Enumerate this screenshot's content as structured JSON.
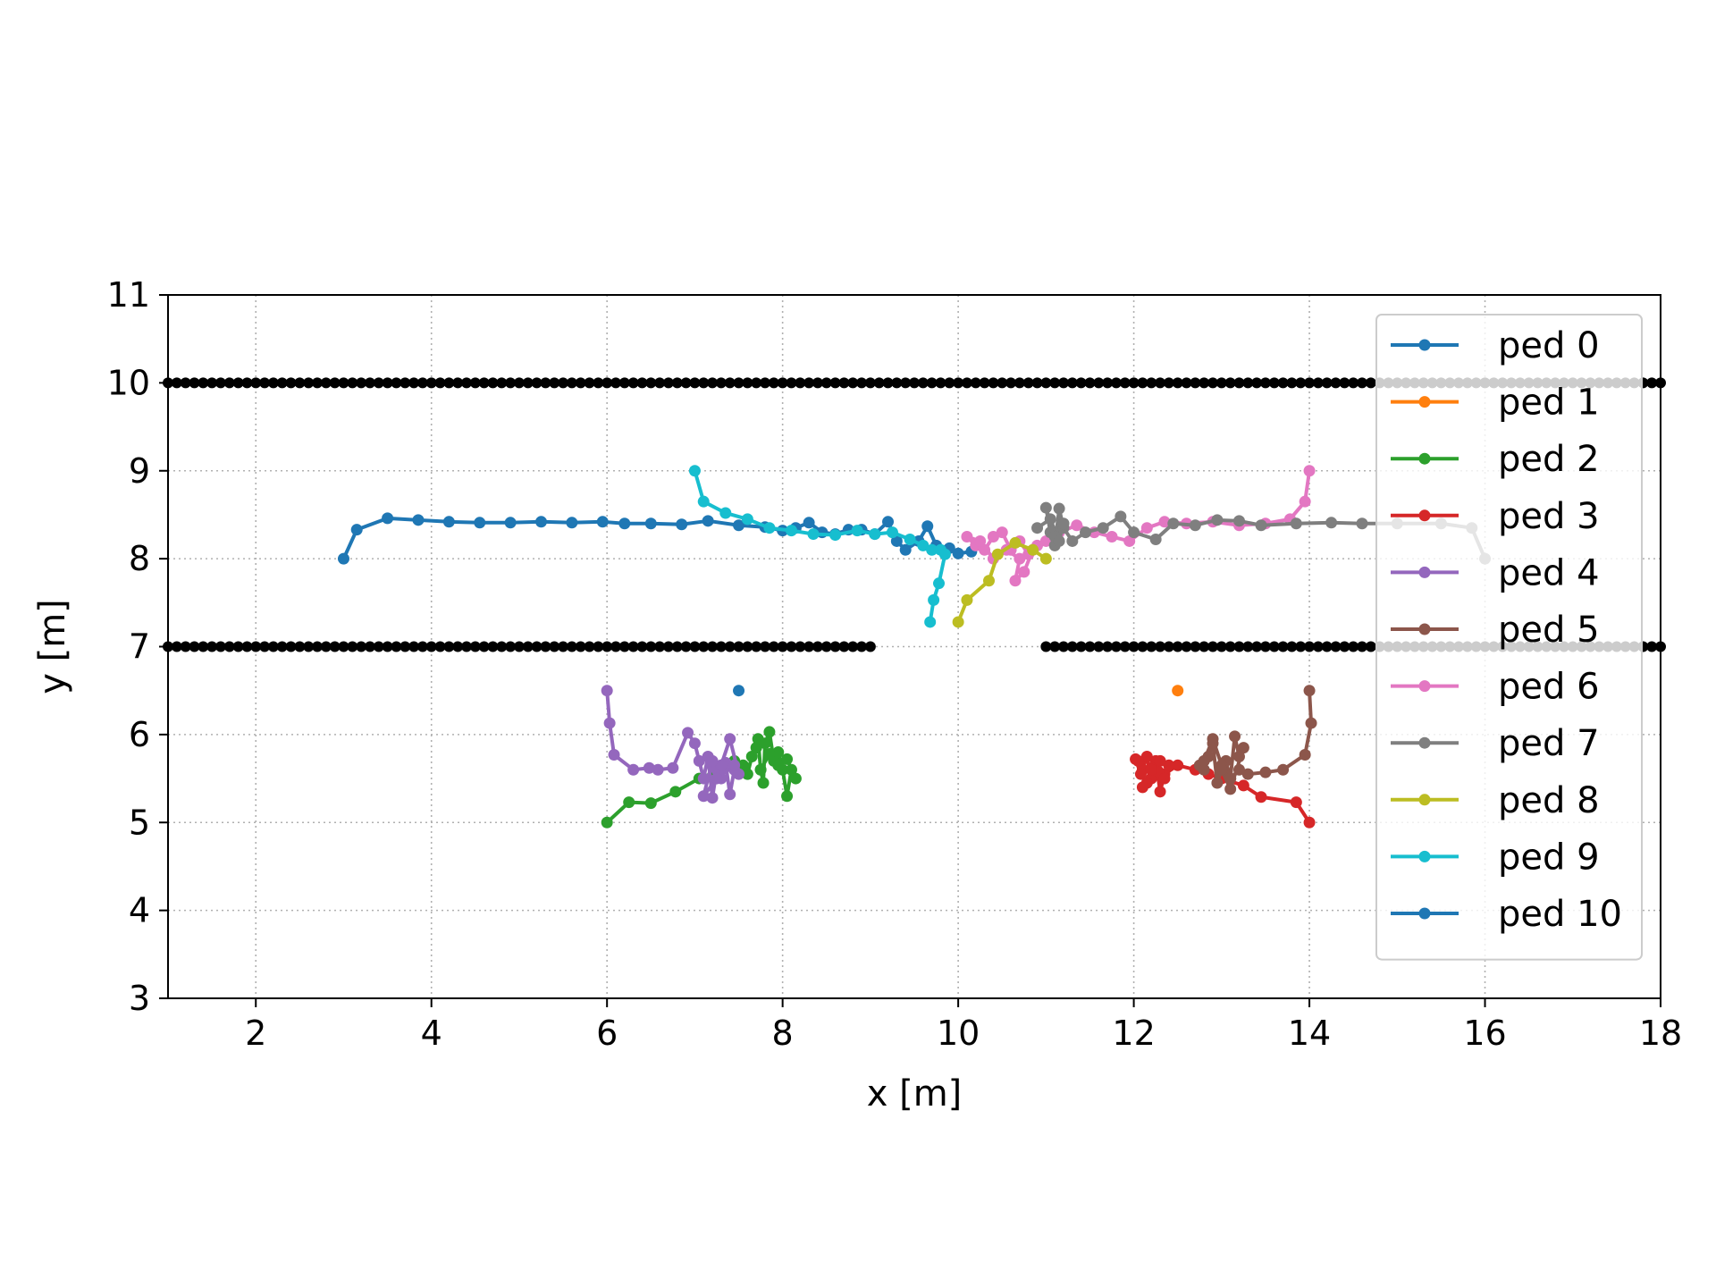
{
  "chart_data": {
    "type": "scatter",
    "title": "",
    "xlabel": "x [m]",
    "ylabel": "y [m]",
    "xlim": [
      1,
      18
    ],
    "ylim": [
      3,
      11
    ],
    "xticks": [
      2,
      4,
      6,
      8,
      10,
      12,
      14,
      16,
      18
    ],
    "yticks": [
      3,
      4,
      5,
      6,
      7,
      8,
      9,
      10,
      11
    ],
    "grid": true,
    "grid_style": "dotted",
    "legend_position": "upper-right",
    "walls": {
      "color": "#000000",
      "segments": [
        {
          "name": "upper-wall",
          "y": 10,
          "x_start": 1,
          "x_end": 18,
          "step": 0.1
        },
        {
          "name": "lower-wall-left",
          "y": 7,
          "x_start": 1,
          "x_end": 9,
          "step": 0.1
        },
        {
          "name": "lower-wall-right",
          "y": 7,
          "x_start": 11,
          "x_end": 18,
          "step": 0.1
        }
      ]
    },
    "series": [
      {
        "name": "ped 0",
        "color": "#1f77b4",
        "x": [
          3.0,
          3.15,
          3.5,
          3.85,
          4.2,
          4.55,
          4.9,
          5.25,
          5.6,
          5.95,
          6.2,
          6.5,
          6.85,
          7.15,
          7.5,
          7.8,
          8.0,
          8.15,
          8.3,
          8.45,
          8.6,
          8.75,
          8.9,
          9.05,
          9.2,
          9.3,
          9.4,
          9.55,
          9.65,
          9.75,
          9.9,
          10.0,
          10.15
        ],
        "y": [
          8.0,
          8.33,
          8.46,
          8.44,
          8.42,
          8.41,
          8.41,
          8.42,
          8.41,
          8.42,
          8.4,
          8.4,
          8.39,
          8.43,
          8.38,
          8.36,
          8.32,
          8.35,
          8.41,
          8.3,
          8.28,
          8.33,
          8.33,
          8.28,
          8.42,
          8.2,
          8.1,
          8.2,
          8.37,
          8.15,
          8.12,
          8.06,
          8.08
        ]
      },
      {
        "name": "ped 1",
        "color": "#ff7f0e",
        "x": [
          12.5
        ],
        "y": [
          6.5
        ]
      },
      {
        "name": "ped 2",
        "color": "#2ca02c",
        "x": [
          6.0,
          6.25,
          6.5,
          6.78,
          7.05,
          7.3,
          7.45,
          7.55,
          7.6,
          7.65,
          7.7,
          7.72,
          7.75,
          7.78,
          7.8,
          7.85,
          7.9,
          7.95,
          8.0,
          8.05,
          8.1,
          8.15,
          8.05,
          7.95,
          7.85,
          7.75
        ],
        "y": [
          5.0,
          5.23,
          5.22,
          5.35,
          5.5,
          5.6,
          5.7,
          5.65,
          5.55,
          5.75,
          5.85,
          5.95,
          5.6,
          5.45,
          5.9,
          6.03,
          5.7,
          5.8,
          5.6,
          5.3,
          5.6,
          5.5,
          5.72,
          5.65,
          5.78,
          5.6
        ]
      },
      {
        "name": "ped 3",
        "color": "#d62728",
        "x": [
          14.0,
          13.85,
          13.45,
          13.25,
          13.0,
          12.85,
          12.7,
          12.5,
          12.35,
          12.3,
          12.25,
          12.2,
          12.15,
          12.1,
          12.05,
          12.02,
          12.08,
          12.15,
          12.2,
          12.28,
          12.35,
          12.4,
          12.3,
          12.2,
          12.1
        ],
        "y": [
          5.0,
          5.23,
          5.29,
          5.42,
          5.5,
          5.55,
          5.6,
          5.65,
          5.55,
          5.35,
          5.7,
          5.5,
          5.75,
          5.6,
          5.7,
          5.72,
          5.55,
          5.45,
          5.62,
          5.58,
          5.5,
          5.65,
          5.7,
          5.6,
          5.4
        ]
      },
      {
        "name": "ped 4",
        "color": "#9467bd",
        "x": [
          6.0,
          6.03,
          6.08,
          6.3,
          6.48,
          6.58,
          6.75,
          6.92,
          7.0,
          7.05,
          7.1,
          7.15,
          7.2,
          7.25,
          7.3,
          7.35,
          7.4,
          7.45,
          7.5,
          7.4,
          7.3,
          7.2,
          7.1,
          7.25,
          7.45
        ],
        "y": [
          6.5,
          6.13,
          5.77,
          5.6,
          5.62,
          5.6,
          5.62,
          6.02,
          5.9,
          5.7,
          5.5,
          5.75,
          5.28,
          5.6,
          5.5,
          5.68,
          5.32,
          5.6,
          5.55,
          5.95,
          5.65,
          5.7,
          5.3,
          5.5,
          5.65
        ]
      },
      {
        "name": "ped 5",
        "color": "#8c564b",
        "x": [
          14.0,
          14.02,
          13.95,
          13.7,
          13.5,
          13.3,
          13.2,
          13.1,
          13.05,
          13.0,
          12.95,
          12.9,
          12.85,
          12.8,
          12.75,
          12.8,
          12.9,
          13.0,
          13.1,
          13.15,
          13.2,
          13.25,
          13.1,
          13.0
        ],
        "y": [
          6.5,
          6.13,
          5.77,
          5.6,
          5.57,
          5.55,
          5.6,
          5.5,
          5.7,
          5.6,
          5.45,
          5.9,
          5.75,
          5.6,
          5.65,
          5.7,
          5.95,
          5.65,
          5.5,
          5.98,
          5.75,
          5.85,
          5.38,
          5.6
        ]
      },
      {
        "name": "ped 6",
        "color": "#e377c2",
        "x": [
          14.0,
          13.95,
          13.78,
          13.5,
          13.2,
          12.9,
          12.6,
          12.35,
          12.15,
          11.95,
          11.75,
          11.55,
          11.35,
          11.15,
          11.0,
          10.9,
          10.8,
          10.7,
          10.6,
          10.5,
          10.4,
          10.3,
          10.2,
          10.1,
          10.25,
          10.4,
          10.55,
          10.7,
          10.65,
          10.75,
          10.85
        ],
        "y": [
          9.0,
          8.65,
          8.45,
          8.4,
          8.38,
          8.42,
          8.4,
          8.42,
          8.35,
          8.2,
          8.25,
          8.3,
          8.38,
          8.3,
          8.2,
          8.15,
          8.05,
          8.2,
          8.1,
          8.3,
          8.25,
          8.1,
          8.15,
          8.25,
          8.2,
          8.0,
          8.1,
          8.0,
          7.75,
          7.85,
          8.1
        ]
      },
      {
        "name": "ped 7",
        "color": "#7f7f7f",
        "x": [
          16.0,
          15.85,
          15.5,
          15.0,
          14.6,
          14.25,
          13.85,
          13.45,
          13.2,
          12.95,
          12.7,
          12.45,
          12.25,
          12.0,
          11.85,
          11.65,
          11.45,
          11.3,
          11.2,
          11.15,
          11.1,
          11.05,
          11.0,
          11.1,
          11.2,
          11.15,
          11.05,
          10.9
        ],
        "y": [
          8.0,
          8.35,
          8.4,
          8.4,
          8.4,
          8.41,
          8.4,
          8.38,
          8.43,
          8.44,
          8.38,
          8.4,
          8.22,
          8.3,
          8.48,
          8.35,
          8.3,
          8.2,
          8.35,
          8.57,
          8.15,
          8.3,
          8.58,
          8.25,
          8.4,
          8.2,
          8.45,
          8.35
        ]
      },
      {
        "name": "ped 8",
        "color": "#bcbd22",
        "x": [
          11.0,
          10.85,
          10.65,
          10.45,
          10.35,
          10.1,
          10.0
        ],
        "y": [
          8.0,
          8.1,
          8.18,
          8.05,
          7.75,
          7.53,
          7.28
        ]
      },
      {
        "name": "ped 9",
        "color": "#17becf",
        "x": [
          7.0,
          7.1,
          7.35,
          7.6,
          7.85,
          8.1,
          8.35,
          8.6,
          8.85,
          9.05,
          9.25,
          9.45,
          9.6,
          9.7,
          9.8,
          9.85,
          9.78,
          9.72,
          9.68
        ],
        "y": [
          9.0,
          8.65,
          8.52,
          8.45,
          8.35,
          8.32,
          8.28,
          8.27,
          8.32,
          8.28,
          8.3,
          8.22,
          8.15,
          8.1,
          8.1,
          8.05,
          7.72,
          7.53,
          7.28
        ]
      },
      {
        "name": "ped 10",
        "color": "#1f77b4",
        "x": [
          7.5
        ],
        "y": [
          6.5
        ]
      }
    ]
  }
}
